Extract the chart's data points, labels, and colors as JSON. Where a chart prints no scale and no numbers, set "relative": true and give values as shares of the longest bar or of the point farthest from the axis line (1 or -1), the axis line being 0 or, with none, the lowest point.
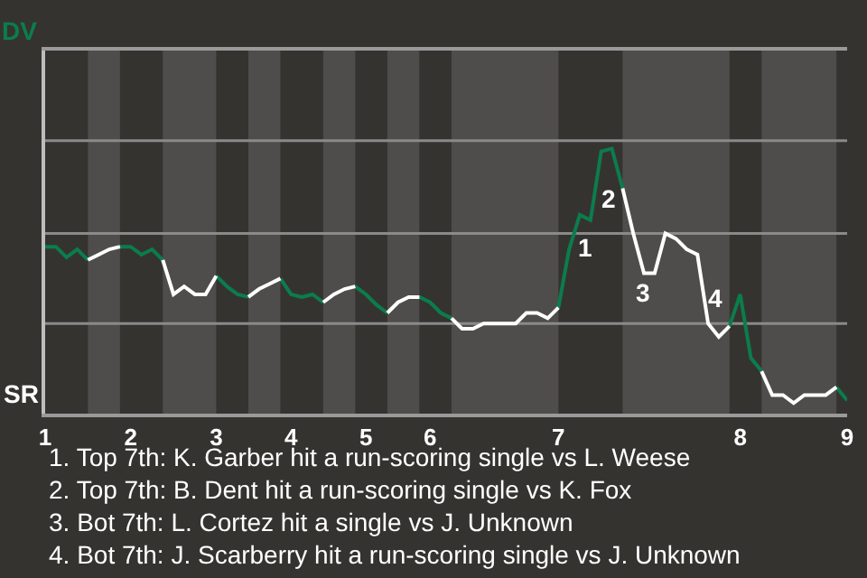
{
  "chart_data": {
    "type": "line",
    "relative": true,
    "categories": [
      "1",
      null,
      null,
      null,
      null,
      null,
      null,
      null,
      "2",
      null,
      null,
      null,
      null,
      null,
      null,
      null,
      "3",
      null,
      null,
      null,
      null,
      null,
      null,
      "4",
      null,
      null,
      null,
      null,
      null,
      null,
      "5",
      null,
      null,
      null,
      null,
      null,
      "6",
      null,
      null,
      null,
      null,
      null,
      null,
      null,
      null,
      null,
      null,
      null,
      "7",
      null,
      null,
      null,
      null,
      null,
      null,
      null,
      null,
      null,
      null,
      null,
      null,
      null,
      null,
      null,
      null,
      "8",
      null,
      null,
      null,
      null,
      null,
      null,
      null,
      null,
      null,
      "9"
    ],
    "ref_lines": [
      {
        "axis": "y",
        "value": 0.34,
        "color": "#8a8a8a"
      },
      {
        "axis": "y",
        "value": 0.68,
        "color": "#8a8a8a"
      },
      {
        "axis": "y",
        "value": 1.03,
        "color": "#8a8a8a"
      }
    ],
    "series": [
      {
        "color": "#0b7d4c",
        "values": [
          0.63,
          0.63,
          0.59,
          0.62,
          0.58,
          null,
          null,
          0.63,
          0.63,
          0.6,
          0.62,
          0.58,
          null,
          null,
          null,
          null,
          0.52,
          0.48,
          0.45,
          0.44,
          null,
          null,
          0.51,
          0.45,
          0.44,
          0.45,
          0.42,
          null,
          null,
          0.48,
          0.45,
          0.41,
          0.38,
          null,
          null,
          0.44,
          0.42,
          0.38,
          0.36,
          null,
          null,
          null,
          null,
          null,
          null,
          null,
          null,
          null,
          0.4,
          0.62,
          0.75,
          0.73,
          0.99,
          1,
          0.85,
          null,
          null,
          null,
          null,
          null,
          null,
          null,
          null,
          null,
          0.33,
          0.45,
          0.21,
          0.16,
          null,
          null,
          null,
          null,
          null,
          null,
          0.1,
          0.05
        ]
      },
      {
        "color": "#ffffff",
        "values": [
          null,
          null,
          null,
          null,
          0.58,
          0.6,
          0.62,
          0.63,
          null,
          null,
          null,
          0.58,
          0.45,
          0.48,
          0.45,
          0.45,
          0.52,
          null,
          null,
          0.44,
          0.47,
          0.49,
          0.51,
          null,
          null,
          null,
          0.42,
          0.45,
          0.47,
          0.48,
          null,
          null,
          0.38,
          0.42,
          0.44,
          0.44,
          null,
          null,
          0.36,
          0.32,
          0.32,
          0.34,
          0.34,
          0.34,
          0.34,
          0.38,
          0.38,
          0.36,
          0.4,
          null,
          null,
          null,
          null,
          null,
          0.85,
          0.68,
          0.53,
          0.53,
          0.68,
          0.66,
          0.62,
          0.6,
          0.34,
          0.29,
          0.33,
          null,
          null,
          0.16,
          0.07,
          0.07,
          0.04,
          0.07,
          0.07,
          0.07,
          0.1,
          null
        ]
      }
    ],
    "annotations": [
      "DV",
      "SR",
      "1",
      "2",
      "3",
      "4",
      "1. Top 7th: K. Garber hit a run-scoring single vs L. Weese",
      "2. Top 7th: B. Dent hit a run-scoring single vs K. Fox",
      "3. Bot 7th: L. Cortez hit a single vs J. Unknown",
      "4. Bot 7th: J. Scarberry hit a run-scoring single vs J. Unknown"
    ]
  }
}
